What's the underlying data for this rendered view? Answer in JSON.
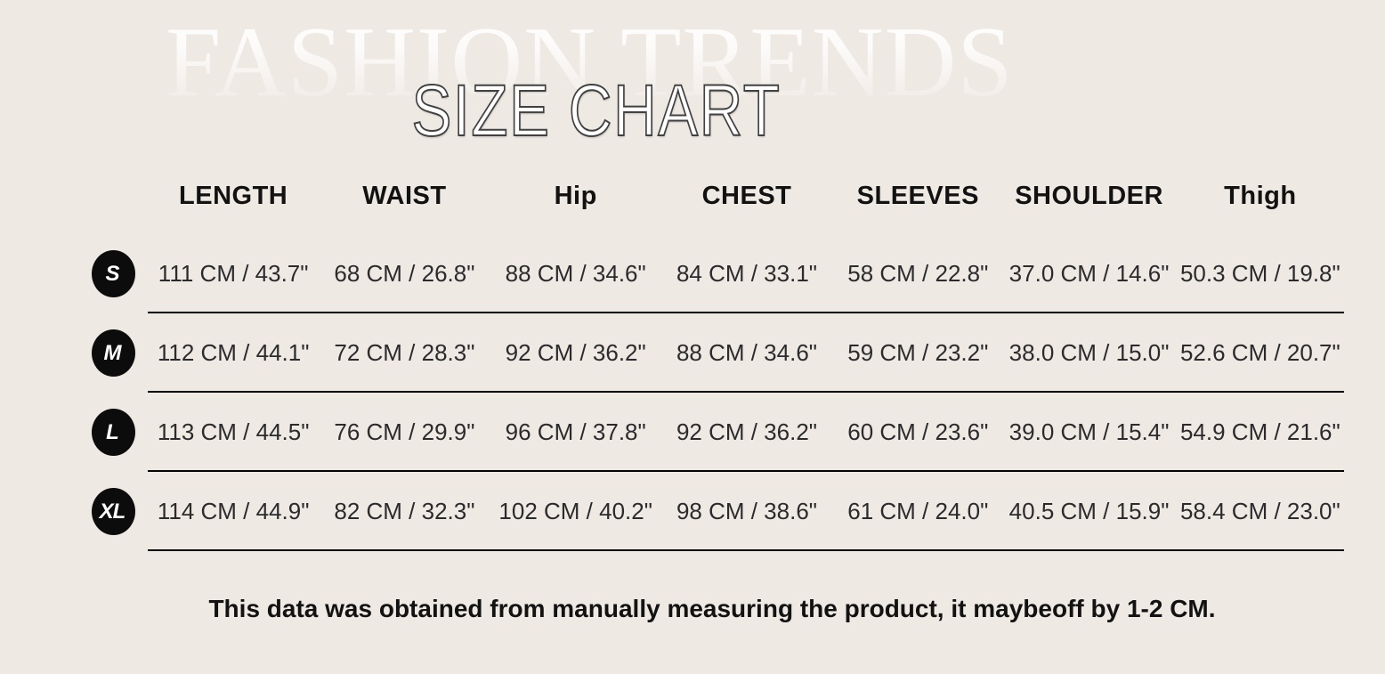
{
  "colors": {
    "background": "#efe9e3",
    "ink": "#2b2b2e",
    "header-ink": "#121212",
    "divider": "#050505",
    "badge-bg": "#0c0c0c",
    "badge-ink": "#ffffff",
    "title-fill": "#ffffff",
    "title-stroke": "#414141"
  },
  "chart_data": {
    "type": "table",
    "watermark": "FASHION TRENDS",
    "title": "SIZE CHART",
    "columns": [
      "LENGTH",
      "WAIST",
      "Hip",
      "CHEST",
      "SLEEVES",
      "SHOULDER",
      "Thigh"
    ],
    "rows": [
      {
        "size": "S",
        "values": [
          "111 CM / 43.7\"",
          "68 CM / 26.8\"",
          "88 CM / 34.6\"",
          "84 CM / 33.1\"",
          "58 CM / 22.8\"",
          "37.0 CM / 14.6\"",
          "50.3 CM / 19.8\""
        ]
      },
      {
        "size": "M",
        "values": [
          "112 CM / 44.1\"",
          "72 CM / 28.3\"",
          "92 CM / 36.2\"",
          "88 CM / 34.6\"",
          "59 CM / 23.2\"",
          "38.0 CM / 15.0\"",
          "52.6 CM / 20.7\""
        ]
      },
      {
        "size": "L",
        "values": [
          "113 CM / 44.5\"",
          "76 CM / 29.9\"",
          "96 CM / 37.8\"",
          "92 CM / 36.2\"",
          "60 CM / 23.6\"",
          "39.0 CM / 15.4\"",
          "54.9 CM / 21.6\""
        ]
      },
      {
        "size": "XL",
        "values": [
          "114 CM / 44.9\"",
          "82 CM / 32.3\"",
          "102 CM / 40.2\"",
          "98 CM / 38.6\"",
          "61 CM / 24.0\"",
          "40.5 CM / 15.9\"",
          "58.4 CM / 23.0\""
        ]
      }
    ],
    "note": "This data was obtained from manually measuring the product, it maybeoff by 1-2 CM."
  }
}
